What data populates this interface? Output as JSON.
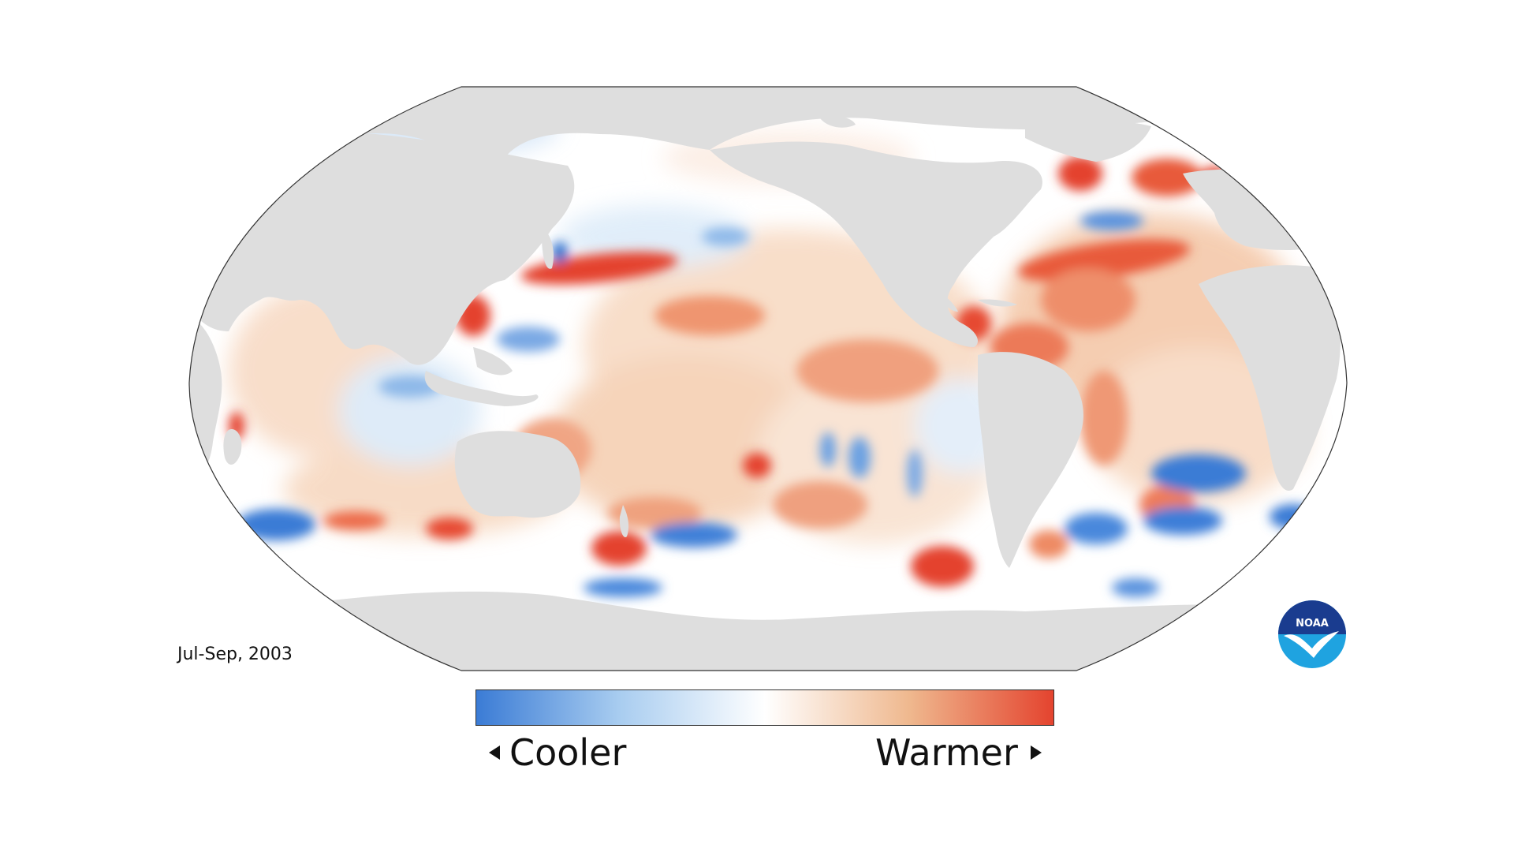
{
  "map": {
    "projection": "Robinson (Pacific-centered)",
    "land_color": "#dedede",
    "ocean_base_color": "#ffffff",
    "outline_color": "#333333"
  },
  "period_label": "Jul-Sep, 2003",
  "legend": {
    "cool_label": "Cooler",
    "warm_label": "Warmer",
    "colors": [
      "#3a7bd5",
      "#a9cdf0",
      "#ffffff",
      "#f1c8a8",
      "#e4432e"
    ],
    "arrow_left_icon": "triangle-left",
    "arrow_right_icon": "triangle-right"
  },
  "logo": {
    "text": "NOAA",
    "colors": {
      "top": "#1a3c8f",
      "bottom": "#1fa3e0",
      "bird": "#ffffff"
    }
  }
}
